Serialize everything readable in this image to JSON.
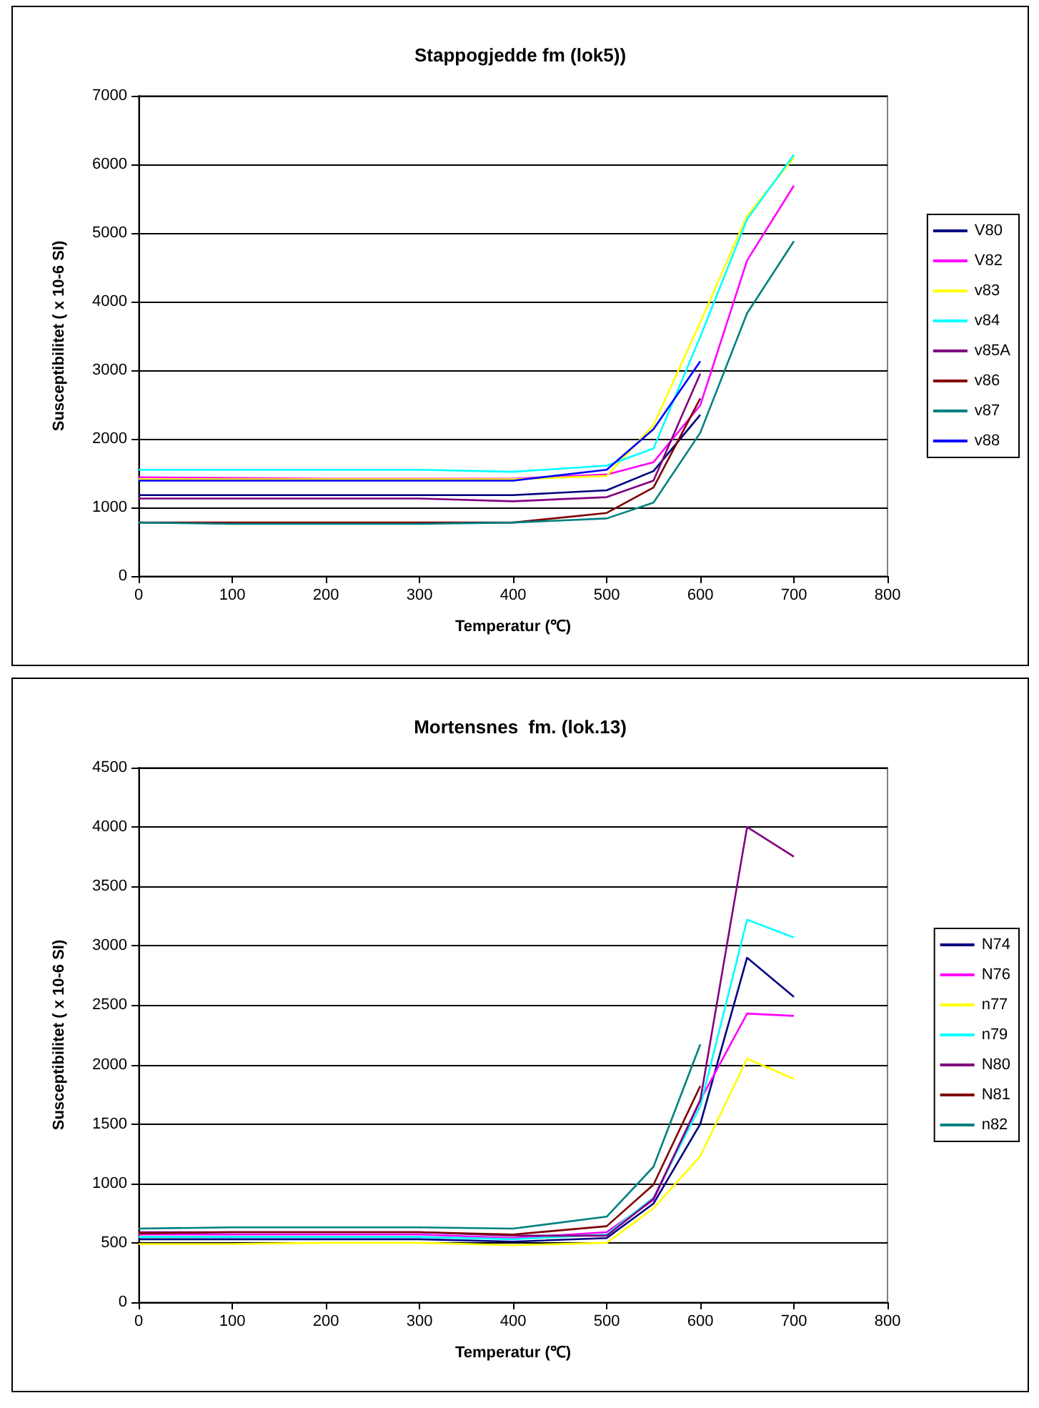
{
  "chart_data": [
    {
      "type": "line",
      "title": "Stappogjedde fm (lok5))",
      "xlabel": "Temperatur (℃)",
      "ylabel": "Susceptibilitet ( x 10-6 SI)",
      "x": [
        0,
        100,
        200,
        300,
        400,
        500,
        550,
        600,
        650,
        700
      ],
      "xlim": [
        0,
        800
      ],
      "xticks": [
        0,
        100,
        200,
        300,
        400,
        500,
        600,
        700,
        800
      ],
      "ylim": [
        0,
        7000
      ],
      "yticks": [
        0,
        1000,
        2000,
        3000,
        4000,
        5000,
        6000,
        7000
      ],
      "grid": "y",
      "legend": "right",
      "marker": "none",
      "series": [
        {
          "name": "V80",
          "color": "#000080",
          "values": [
            1180,
            1180,
            1180,
            1180,
            1180,
            1250,
            1530,
            2350,
            null,
            null
          ]
        },
        {
          "name": "V82",
          "color": "#ff00ff",
          "values": [
            1440,
            1430,
            1420,
            1420,
            1420,
            1480,
            1660,
            2490,
            4600,
            5690
          ]
        },
        {
          "name": "v83",
          "color": "#ffff00",
          "values": [
            1410,
            1410,
            1410,
            1410,
            1410,
            1460,
            2200,
            3700,
            5250,
            6100
          ]
        },
        {
          "name": "v84",
          "color": "#00ffff",
          "values": [
            1550,
            1550,
            1550,
            1550,
            1520,
            1610,
            1860,
            3490,
            5200,
            6140
          ]
        },
        {
          "name": "v85A",
          "color": "#800080",
          "values": [
            1130,
            1130,
            1130,
            1130,
            1090,
            1150,
            1390,
            2950,
            null,
            null
          ]
        },
        {
          "name": "v86",
          "color": "#800000",
          "values": [
            780,
            780,
            780,
            780,
            780,
            920,
            1290,
            2590,
            null,
            null
          ]
        },
        {
          "name": "v87",
          "color": "#008080",
          "values": [
            780,
            760,
            760,
            760,
            780,
            840,
            1070,
            2090,
            3830,
            4880
          ]
        },
        {
          "name": "v88",
          "color": "#0000ff",
          "values": [
            1390,
            1390,
            1390,
            1390,
            1390,
            1550,
            2140,
            3130,
            null,
            null
          ]
        }
      ]
    },
    {
      "type": "line",
      "title": "Mortensnes  fm. (lok.13)",
      "xlabel": "Temperatur (℃)",
      "ylabel": "Susceptibilitet ( x 10-6 SI)",
      "x": [
        0,
        100,
        200,
        300,
        400,
        500,
        550,
        600,
        650,
        700
      ],
      "xlim": [
        0,
        800
      ],
      "xticks": [
        0,
        100,
        200,
        300,
        400,
        500,
        600,
        700,
        800
      ],
      "ylim": [
        0,
        4500
      ],
      "yticks": [
        0,
        500,
        1000,
        1500,
        2000,
        2500,
        3000,
        3500,
        4000,
        4500
      ],
      "grid": "y",
      "legend": "right",
      "marker": "none",
      "series": [
        {
          "name": "N74",
          "color": "#000080",
          "values": [
            530,
            530,
            530,
            530,
            510,
            540,
            830,
            1500,
            2900,
            2570
          ]
        },
        {
          "name": "N76",
          "color": "#ff00ff",
          "values": [
            570,
            570,
            570,
            570,
            540,
            590,
            860,
            1700,
            2430,
            2410
          ]
        },
        {
          "name": "n77",
          "color": "#ffff00",
          "values": [
            490,
            490,
            500,
            500,
            480,
            500,
            790,
            1230,
            2050,
            1880
          ]
        },
        {
          "name": "n79",
          "color": "#00ffff",
          "values": [
            550,
            550,
            550,
            550,
            530,
            570,
            880,
            1650,
            3220,
            3070
          ]
        },
        {
          "name": "N80",
          "color": "#800080",
          "values": [
            590,
            590,
            590,
            590,
            560,
            560,
            870,
            1700,
            4000,
            3750
          ]
        },
        {
          "name": "N81",
          "color": "#800000",
          "values": [
            580,
            590,
            590,
            590,
            570,
            640,
            990,
            1820,
            null,
            null
          ]
        },
        {
          "name": "n82",
          "color": "#008080",
          "values": [
            620,
            630,
            630,
            630,
            620,
            720,
            1140,
            2170,
            null,
            null
          ]
        }
      ]
    }
  ]
}
